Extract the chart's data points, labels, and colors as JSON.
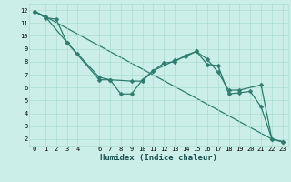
{
  "xlabel": "Humidex (Indice chaleur)",
  "bg_color": "#cceee8",
  "grid_color": "#aaddcc",
  "line_color": "#2d7d6e",
  "xlim": [
    -0.5,
    23.5
  ],
  "ylim": [
    1.5,
    12.5
  ],
  "xticks": [
    0,
    1,
    2,
    3,
    4,
    6,
    7,
    8,
    9,
    10,
    11,
    12,
    13,
    14,
    15,
    16,
    17,
    18,
    19,
    20,
    21,
    22,
    23
  ],
  "yticks": [
    2,
    3,
    4,
    5,
    6,
    7,
    8,
    9,
    10,
    11,
    12
  ],
  "line1_x": [
    0,
    1,
    2,
    3,
    6,
    7,
    8,
    9,
    10,
    11,
    12,
    13,
    14,
    15,
    16,
    17,
    18,
    19,
    20,
    21,
    22,
    23
  ],
  "line1_y": [
    11.9,
    11.4,
    11.3,
    9.5,
    6.6,
    6.6,
    5.5,
    5.5,
    6.6,
    7.3,
    7.9,
    8.0,
    8.5,
    8.8,
    7.8,
    7.7,
    5.5,
    5.6,
    5.7,
    4.5,
    2.0,
    1.8
  ],
  "line2_x": [
    0,
    1,
    3,
    4,
    6,
    7,
    9,
    10,
    11,
    13,
    14,
    15,
    16,
    17,
    18,
    19,
    21,
    22,
    23
  ],
  "line2_y": [
    11.9,
    11.5,
    9.5,
    8.6,
    6.8,
    6.6,
    6.5,
    6.5,
    7.3,
    8.1,
    8.4,
    8.8,
    8.2,
    7.2,
    5.8,
    5.8,
    6.2,
    2.0,
    1.8
  ],
  "line3_x": [
    0,
    1,
    22,
    23
  ],
  "line3_y": [
    11.9,
    11.5,
    2.0,
    1.8
  ],
  "marker_size": 2.5,
  "line_width": 0.9,
  "tick_fontsize": 5.0,
  "xlabel_fontsize": 6.5
}
